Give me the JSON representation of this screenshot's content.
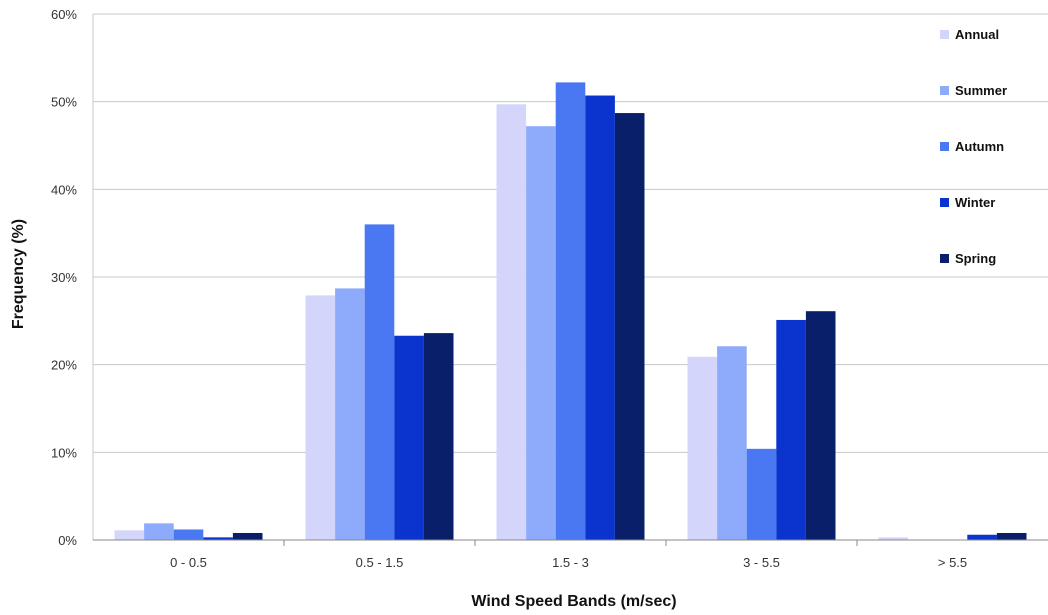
{
  "chart_data": {
    "type": "bar",
    "categories": [
      "0 - 0.5",
      "0.5 - 1.5",
      "1.5 - 3",
      "3 - 5.5",
      "> 5.5"
    ],
    "series": [
      {
        "name": "Annual",
        "values": [
          1.1,
          27.9,
          49.7,
          20.9,
          0.3
        ],
        "color": "#d3d5fb"
      },
      {
        "name": "Summer",
        "values": [
          1.9,
          28.7,
          47.2,
          22.1,
          0.0
        ],
        "color": "#8eaafb"
      },
      {
        "name": "Autumn",
        "values": [
          1.2,
          36.0,
          52.2,
          10.4,
          0.0
        ],
        "color": "#4a78f3"
      },
      {
        "name": "Winter",
        "values": [
          0.3,
          23.3,
          50.7,
          25.1,
          0.6
        ],
        "color": "#0a34cd"
      },
      {
        "name": "Spring",
        "values": [
          0.8,
          23.6,
          48.7,
          26.1,
          0.8
        ],
        "color": "#0a1f6a"
      }
    ],
    "xlabel": "Wind Speed Bands (m/sec)",
    "ylabel": "Frequency (%)",
    "ylim": [
      0,
      60
    ],
    "yticks": [
      "0%",
      "10%",
      "20%",
      "30%",
      "40%",
      "50%",
      "60%"
    ],
    "grid": true,
    "legend_position": "top-right"
  }
}
